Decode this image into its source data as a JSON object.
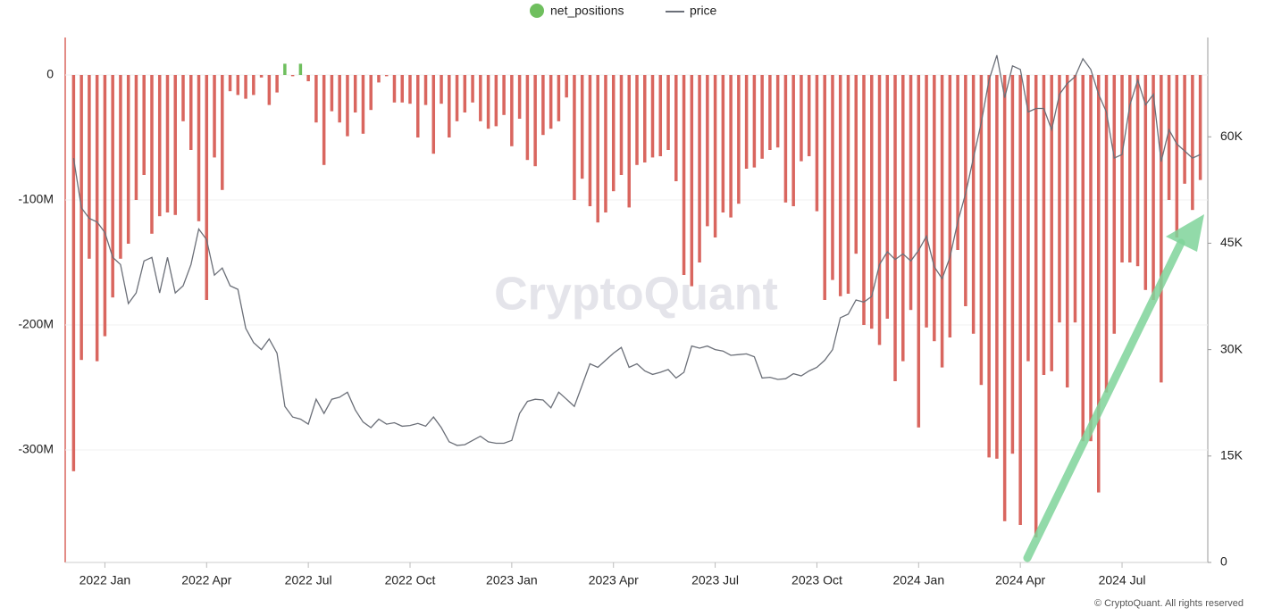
{
  "chart_data": {
    "type": "bar_line",
    "watermark": "CryptoQuant",
    "credit": "© CryptoQuant. All rights reserved",
    "categories": [
      null,
      null,
      null,
      null,
      "2022 Jan",
      null,
      null,
      null,
      null,
      null,
      null,
      null,
      null,
      null,
      null,
      null,
      null,
      "2022 Apr",
      null,
      null,
      null,
      null,
      null,
      null,
      null,
      null,
      null,
      null,
      null,
      null,
      "2022 Jul",
      null,
      null,
      null,
      null,
      null,
      null,
      null,
      null,
      null,
      null,
      null,
      null,
      "2022 Oct",
      null,
      null,
      null,
      null,
      null,
      null,
      null,
      null,
      null,
      null,
      null,
      null,
      "2023 Jan",
      null,
      null,
      null,
      null,
      null,
      null,
      null,
      null,
      null,
      null,
      null,
      null,
      "2023 Apr",
      null,
      null,
      null,
      null,
      null,
      null,
      null,
      null,
      null,
      null,
      null,
      null,
      "2023 Jul",
      null,
      null,
      null,
      null,
      null,
      null,
      null,
      null,
      null,
      null,
      null,
      null,
      "2023 Oct",
      null,
      null,
      null,
      null,
      null,
      null,
      null,
      null,
      null,
      null,
      null,
      null,
      "2024 Jan",
      null,
      null,
      null,
      null,
      null,
      null,
      null,
      null,
      null,
      null,
      null,
      null,
      "2024 Apr",
      null,
      null,
      null,
      null,
      null,
      null,
      null,
      null,
      null,
      null,
      null,
      null,
      "2024 Jul",
      null,
      null,
      null,
      null,
      null,
      null,
      null,
      null,
      null,
      null
    ],
    "series": [
      {
        "name": "net_positions",
        "color": "#6fbf5e",
        "negative_color": "#d9665f",
        "values": [
          -317000000,
          -228000000,
          -147000000,
          -229000000,
          -209000000,
          -178000000,
          -147000000,
          -135000000,
          -100000000,
          -80000000,
          -127000000,
          -113000000,
          -110000000,
          -112000000,
          -37000000,
          -60000000,
          -117000000,
          -180000000,
          -66000000,
          -92000000,
          -13000000,
          -16000000,
          -19000000,
          -16000000,
          -2000000,
          -24000000,
          -14000000,
          9000000,
          -1000000,
          9000000,
          -5000000,
          -38000000,
          -72000000,
          -29000000,
          -38000000,
          -49000000,
          -30000000,
          -47000000,
          -28000000,
          -6000000,
          -1000000,
          -22000000,
          -22000000,
          -23000000,
          -50000000,
          -24000000,
          -63000000,
          -23000000,
          -50000000,
          -37000000,
          -30000000,
          -22000000,
          -37000000,
          -43000000,
          -41000000,
          -32000000,
          -57000000,
          -35000000,
          -68000000,
          -73000000,
          -48000000,
          -43000000,
          -37000000,
          -18000000,
          -100000000,
          -83000000,
          -105000000,
          -118000000,
          -110000000,
          -93000000,
          -80000000,
          -106000000,
          -72000000,
          -70000000,
          -66000000,
          -65000000,
          -60000000,
          -85000000,
          -160000000,
          -169000000,
          -150000000,
          -121000000,
          -130000000,
          -110000000,
          -114000000,
          -103000000,
          -75000000,
          -74000000,
          -67000000,
          -60000000,
          -58000000,
          -102000000,
          -105000000,
          -69000000,
          -65000000,
          -109000000,
          -180000000,
          -164000000,
          -177000000,
          -175000000,
          -143000000,
          -200000000,
          -203000000,
          -216000000,
          -195000000,
          -245000000,
          -229000000,
          -188000000,
          -282000000,
          -202000000,
          -213000000,
          -234000000,
          -210000000,
          -140000000,
          -185000000,
          -207000000,
          -248000000,
          -306000000,
          -307000000,
          -357000000,
          -303000000,
          -360000000,
          -229000000,
          -370000000,
          -240000000,
          -237000000,
          -198000000,
          -250000000,
          -198000000,
          -293000000,
          -293000000,
          -334000000,
          -254000000,
          -207000000,
          -150000000,
          -150000000,
          -153000000,
          -172000000,
          -180000000,
          -246000000,
          -100000000,
          -130000000,
          -87000000,
          -108000000,
          -84000000
        ]
      },
      {
        "name": "price",
        "color": "#6b6f78",
        "axis": "y2",
        "values": [
          57000,
          50000,
          48500,
          48000,
          46500,
          43000,
          42000,
          36500,
          38000,
          42500,
          43000,
          38000,
          43000,
          38000,
          39000,
          42000,
          47000,
          45500,
          40500,
          41500,
          39000,
          38500,
          33000,
          31000,
          30000,
          31500,
          29500,
          22000,
          20500,
          20200,
          19500,
          23000,
          21000,
          23000,
          23300,
          24000,
          21500,
          19800,
          19000,
          20200,
          19500,
          19700,
          19200,
          19300,
          19600,
          19200,
          20500,
          19000,
          17000,
          16500,
          16600,
          17200,
          17800,
          17000,
          16800,
          16800,
          17200,
          21000,
          22700,
          23000,
          22900,
          21800,
          24000,
          23000,
          22000,
          25000,
          28000,
          27500,
          28500,
          29500,
          30300,
          27500,
          28000,
          27000,
          26500,
          26800,
          27200,
          26000,
          26800,
          30500,
          30200,
          30500,
          30000,
          29800,
          29200,
          29300,
          29400,
          29000,
          26000,
          26100,
          25800,
          25900,
          26600,
          26300,
          27000,
          27500,
          28500,
          30000,
          34500,
          35000,
          37000,
          36700,
          37500,
          42000,
          43800,
          42700,
          43500,
          42500,
          44000,
          46000,
          41700,
          40000,
          43000,
          48000,
          52000,
          57000,
          62000,
          68000,
          71500,
          65500,
          70000,
          69500,
          63500,
          64000,
          64000,
          61000,
          66000,
          67500,
          68500,
          71000,
          69500,
          66000,
          63500,
          57000,
          57500,
          64500,
          68000,
          64500,
          66000,
          56500,
          61000,
          59000,
          58000,
          57000,
          57500
        ]
      }
    ],
    "ylim": [
      -390000000,
      30000000
    ],
    "yticks": [
      0,
      {
        "value": -100000000,
        "label": "-100M"
      },
      {
        "value": -200000000,
        "label": "-200M"
      },
      {
        "value": -300000000,
        "label": "-300M"
      }
    ],
    "y2lim": [
      0,
      74000
    ],
    "y2ticks": [
      0,
      {
        "value": 15000,
        "label": "15K"
      },
      {
        "value": 30000,
        "label": "30K"
      },
      {
        "value": 45000,
        "label": "45K"
      },
      {
        "value": 60000,
        "label": "60K"
      }
    ],
    "grid": true
  }
}
